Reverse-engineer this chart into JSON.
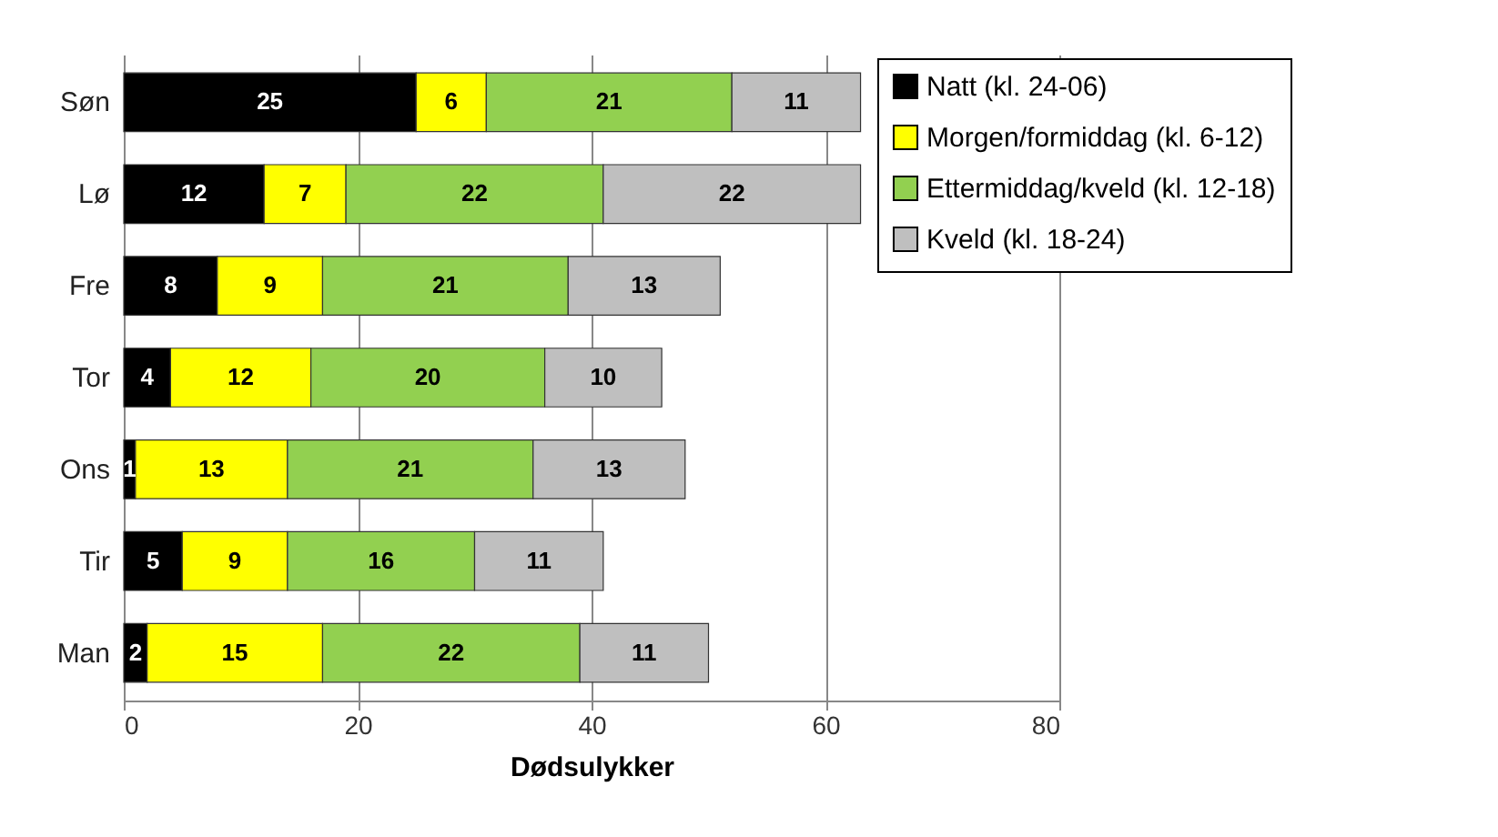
{
  "chart_data": {
    "type": "bar",
    "orientation": "horizontal",
    "stacked": true,
    "xlabel": "Dødsulykker",
    "categories": [
      "Søn",
      "Lø",
      "Fre",
      "Tor",
      "Ons",
      "Tir",
      "Man"
    ],
    "series": [
      {
        "name": "Natt (kl. 24-06)",
        "color": "#000000",
        "values": [
          25,
          12,
          8,
          4,
          1,
          5,
          2
        ]
      },
      {
        "name": "Morgen/formiddag (kl. 6-12)",
        "color": "#ffff00",
        "values": [
          6,
          7,
          9,
          12,
          13,
          9,
          15
        ]
      },
      {
        "name": "Ettermiddag/kveld (kl. 12-18)",
        "color": "#92d050",
        "values": [
          21,
          22,
          21,
          20,
          21,
          16,
          22
        ]
      },
      {
        "name": "Kveld (kl. 18-24)",
        "color": "#bfbfbf",
        "values": [
          11,
          22,
          13,
          10,
          13,
          11,
          11
        ]
      }
    ],
    "xlim": [
      0,
      80
    ],
    "xticks": [
      0,
      20,
      40,
      60,
      80
    ],
    "grid": "x",
    "legend": "top right",
    "data_labels": true
  }
}
